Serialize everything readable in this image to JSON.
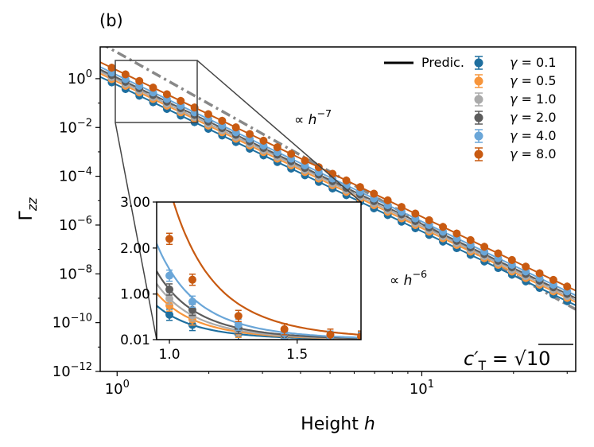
{
  "panel_label": "(b)",
  "colors": {
    "gamma_0_1": "#1f6f9f",
    "gamma_0_5": "#f7953b",
    "gamma_1_0": "#aaaaaa",
    "gamma_2_0": "#5c5c5c",
    "gamma_4_0": "#6aa6d8",
    "gamma_8_0": "#c85a11",
    "reference": "#888888",
    "frame": "#000000",
    "zoom_box": "#444444"
  },
  "chart_data": {
    "type": "scatter",
    "xlabel": "Height h",
    "ylabel": "Γzz",
    "xscale": "log",
    "yscale": "log",
    "xlim": [
      0.88,
      32
    ],
    "ylim": [
      1e-12,
      20
    ],
    "xticks": [
      {
        "value": 1,
        "label": "10^0"
      },
      {
        "value": 10,
        "label": "10^1"
      }
    ],
    "yticks": [
      {
        "value": 1.0,
        "label": "10^0"
      },
      {
        "value": 0.01,
        "label": "10^-2"
      },
      {
        "value": 0.0001,
        "label": "10^-4"
      },
      {
        "value": 1e-06,
        "label": "10^-6"
      },
      {
        "value": 1e-08,
        "label": "10^-8"
      },
      {
        "value": 1e-10,
        "label": "10^-10"
      },
      {
        "value": 1e-12,
        "label": "10^-12"
      }
    ],
    "prediction_legend": "Predic.",
    "parameter_label": "c′T = √10",
    "grid": false,
    "legend_position": "top-right",
    "series": [
      {
        "name": "γ = 0.1",
        "y_at_h1": 0.55,
        "decay_exponent": 6.0
      },
      {
        "name": "γ = 0.5",
        "y_at_h1": 0.75,
        "decay_exponent": 6.0
      },
      {
        "name": "γ = 1.0",
        "y_at_h1": 0.9,
        "decay_exponent": 6.0
      },
      {
        "name": "γ = 2.0",
        "y_at_h1": 1.1,
        "decay_exponent": 6.0
      },
      {
        "name": "γ = 4.0",
        "y_at_h1": 1.4,
        "decay_exponent": 6.0
      },
      {
        "name": "γ = 8.0",
        "y_at_h1": 2.2,
        "decay_exponent": 6.0
      }
    ],
    "reference_lines": [
      {
        "label": "∝ h^-7",
        "exponent": -7,
        "y_at_h1": 12,
        "style": "dash-dot"
      },
      {
        "label": "∝ h^-6",
        "exponent": -6,
        "y_at_h1": 1.0,
        "style": "dashed"
      }
    ],
    "inset": {
      "xlim": [
        0.95,
        1.75
      ],
      "ylim": [
        0.01,
        3.0
      ],
      "xscale": "linear",
      "yscale": "linear",
      "xticks": [
        "1.0",
        "1.5"
      ],
      "yticks": [
        "0.01",
        "1.00",
        "2.00",
        "3.00"
      ]
    }
  }
}
